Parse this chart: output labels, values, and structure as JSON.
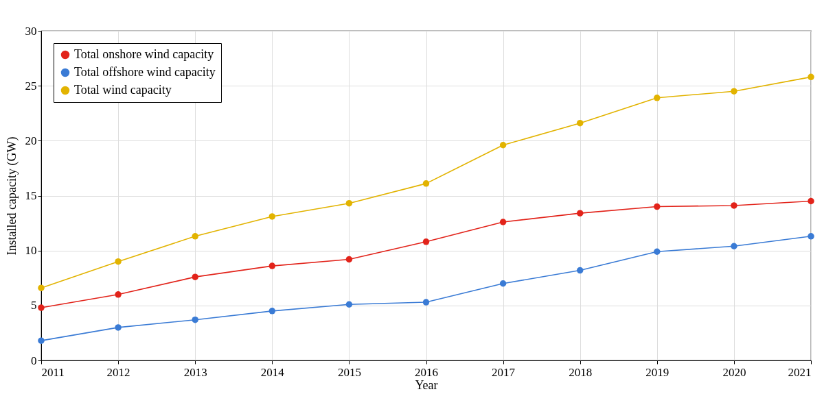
{
  "chart_data": {
    "type": "line",
    "xlabel": "Year",
    "ylabel": "Installed capacity (GW)",
    "x": [
      2011,
      2012,
      2013,
      2014,
      2015,
      2016,
      2017,
      2018,
      2019,
      2020,
      2021
    ],
    "series": [
      {
        "name": "Total onshore wind capacity",
        "color": "#e2231a",
        "values": [
          4.8,
          6.0,
          7.6,
          8.6,
          9.2,
          10.8,
          12.6,
          13.4,
          14.0,
          14.1,
          14.5
        ]
      },
      {
        "name": "Total offshore wind capacity",
        "color": "#3a7bd5",
        "values": [
          1.8,
          3.0,
          3.7,
          4.5,
          5.1,
          5.3,
          7.0,
          8.2,
          9.9,
          10.4,
          11.3
        ]
      },
      {
        "name": "Total wind capacity",
        "color": "#e2b300",
        "values": [
          6.6,
          9.0,
          11.3,
          13.1,
          14.3,
          16.1,
          19.6,
          21.6,
          23.9,
          24.5,
          25.8
        ]
      }
    ],
    "xlim": [
      2011,
      2021
    ],
    "xticks": [
      2011,
      2012,
      2013,
      2014,
      2015,
      2016,
      2017,
      2018,
      2019,
      2020,
      2021
    ],
    "ylim": [
      0,
      30
    ],
    "yticks": [
      0,
      5,
      10,
      15,
      20,
      25,
      30
    ],
    "grid": true,
    "legend": "top left",
    "marker": "circle",
    "line_style": "solid"
  }
}
